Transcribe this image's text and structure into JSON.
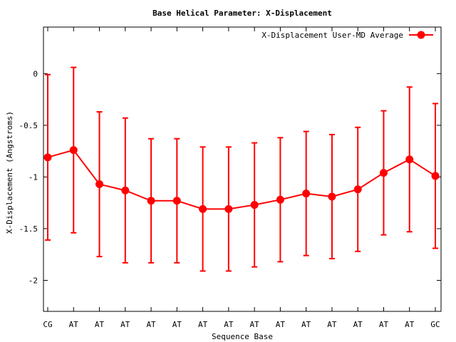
{
  "chart_data": {
    "type": "line",
    "title": "Base  Helical Parameter: X-Displacement",
    "xlabel": "Sequence Base",
    "ylabel": "X-Displacement (Angstroms)",
    "categories": [
      "CG",
      "AT",
      "AT",
      "AT",
      "AT",
      "AT",
      "AT",
      "AT",
      "AT",
      "AT",
      "AT",
      "AT",
      "AT",
      "AT",
      "AT",
      "GC"
    ],
    "ylim": [
      -2.3,
      0.45
    ],
    "yticks": [
      0,
      -0.5,
      -1,
      -1.5,
      -2
    ],
    "ytick_labels": [
      "0",
      "-0.5",
      "-1",
      "-1.5",
      "-2"
    ],
    "grid": false,
    "legend_position": "top-right",
    "series": [
      {
        "name": "X-Displacement User-MD Average",
        "color": "#ff0000",
        "values": [
          -0.81,
          -0.74,
          -1.07,
          -1.13,
          -1.23,
          -1.23,
          -1.31,
          -1.31,
          -1.27,
          -1.22,
          -1.16,
          -1.19,
          -1.12,
          -0.96,
          -0.83,
          -0.99
        ],
        "error": [
          0.8,
          0.8,
          0.7,
          0.7,
          0.6,
          0.6,
          0.6,
          0.6,
          0.6,
          0.6,
          0.6,
          0.6,
          0.6,
          0.6,
          0.7,
          0.7
        ]
      }
    ]
  }
}
